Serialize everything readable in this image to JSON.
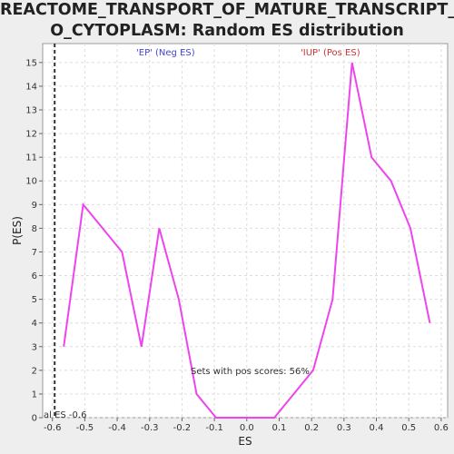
{
  "title_line1": "REACTOME_TRANSPORT_OF_MATURE_TRANSCRIPT_T",
  "title_line2": "O_CYTOPLASM: Random ES distribution",
  "neg_label": "'EP' (Neg ES)",
  "pos_label": "'IUP' (Pos ES)",
  "pos_scores_note": "Sets with pos scores: 56%",
  "actual_es_note": "al ES -0.6",
  "chart_data": {
    "type": "line",
    "xlabel": "ES",
    "ylabel": "P(ES)",
    "xlim": [
      -0.63,
      0.62
    ],
    "ylim": [
      0,
      15.8
    ],
    "grid": true,
    "xticks": [
      -0.6,
      -0.5,
      -0.4,
      -0.3,
      -0.2,
      -0.1,
      0.0,
      0.1,
      0.2,
      0.3,
      0.4,
      0.5,
      0.6
    ],
    "xtick_labels": [
      "-0.6",
      "-0.5",
      "-0.4",
      "-0.3",
      "-0.2",
      "-0.1",
      "0.0",
      "0.1",
      "0.2",
      "0.3",
      "0.4",
      "0.5",
      "0.6"
    ],
    "yticks": [
      0,
      1,
      2,
      3,
      4,
      5,
      6,
      7,
      8,
      9,
      10,
      11,
      12,
      13,
      14,
      15
    ],
    "ytick_labels": [
      "0",
      "1",
      "2",
      "3",
      "4",
      "5",
      "6",
      "7",
      "8",
      "9",
      "10",
      "11",
      "12",
      "13",
      "14",
      "15"
    ],
    "actual_es": -0.593,
    "series": [
      {
        "color": "#ee44ee",
        "x": [
          -0.565,
          -0.505,
          -0.385,
          -0.325,
          -0.27,
          -0.21,
          -0.155,
          -0.095,
          -0.035,
          0.025,
          0.085,
          0.205,
          0.265,
          0.325,
          0.385,
          0.445,
          0.505,
          0.565
        ],
        "y": [
          3,
          9,
          7,
          3,
          8,
          5,
          1,
          0,
          0,
          0,
          0,
          2,
          5,
          15,
          11,
          10,
          8,
          4
        ]
      }
    ]
  }
}
